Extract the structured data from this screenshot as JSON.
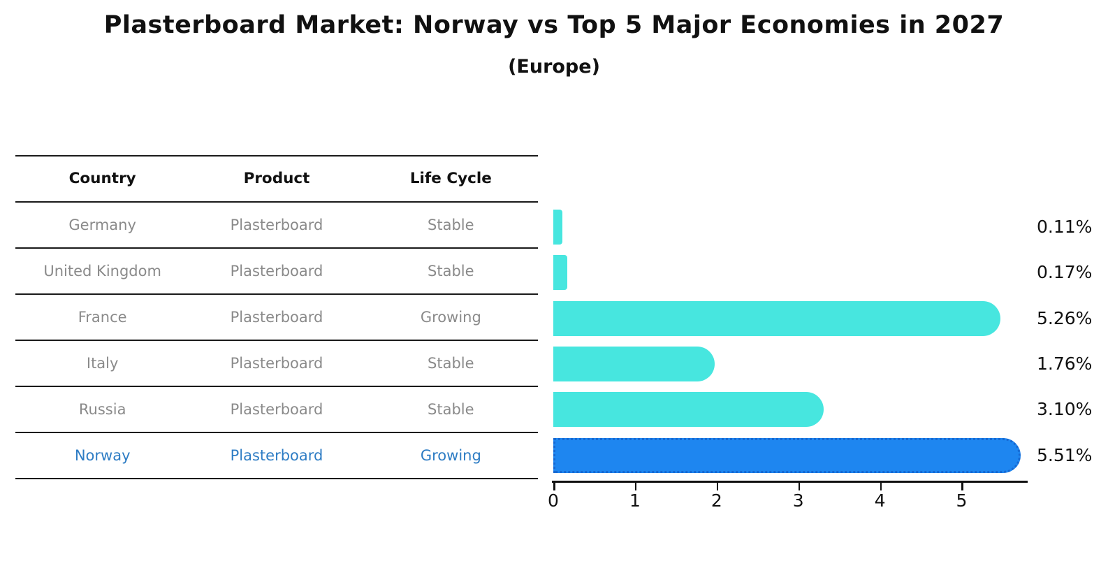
{
  "title": "Plasterboard Market: Norway vs Top 5 Major Economies in 2027",
  "subtitle": "(Europe)",
  "table": {
    "headers": [
      "Country",
      "Product",
      "Life Cycle"
    ],
    "rows": [
      {
        "country": "Germany",
        "product": "Plasterboard",
        "life_cycle": "Stable",
        "highlighted": false
      },
      {
        "country": "United Kingdom",
        "product": "Plasterboard",
        "life_cycle": "Stable",
        "highlighted": false
      },
      {
        "country": "France",
        "product": "Plasterboard",
        "life_cycle": "Growing",
        "highlighted": false
      },
      {
        "country": "Italy",
        "product": "Plasterboard",
        "life_cycle": "Stable",
        "highlighted": false
      },
      {
        "country": "Russia",
        "product": "Plasterboard",
        "life_cycle": "Stable",
        "highlighted": false
      },
      {
        "country": "Norway",
        "product": "Plasterboard",
        "life_cycle": "Growing",
        "highlighted": true
      }
    ]
  },
  "chart_data": {
    "type": "bar",
    "orientation": "horizontal",
    "title": "Plasterboard Market: Norway vs Top 5 Major Economies in 2027",
    "subtitle": "(Europe)",
    "categories": [
      "Germany",
      "United Kingdom",
      "France",
      "Italy",
      "Russia",
      "Norway"
    ],
    "values": [
      0.11,
      0.17,
      5.26,
      1.76,
      3.1,
      5.51
    ],
    "value_labels": [
      "0.11%",
      "0.17%",
      "5.26%",
      "1.76%",
      "3.10%",
      "5.51%"
    ],
    "x_ticks": [
      0,
      1,
      2,
      3,
      4,
      5
    ],
    "xlim": [
      0,
      5.8
    ],
    "xlabel": "",
    "ylabel": "",
    "grid": false,
    "legend": null,
    "bar_color": "#47e6df",
    "highlight_index": 5,
    "highlight_bar_color": "#1e86f0",
    "highlight_border_color": "#1668d2",
    "highlight_text_color": "#2d7cc4",
    "label_color": "#111111",
    "row_text_color": "#8a8a8a"
  }
}
